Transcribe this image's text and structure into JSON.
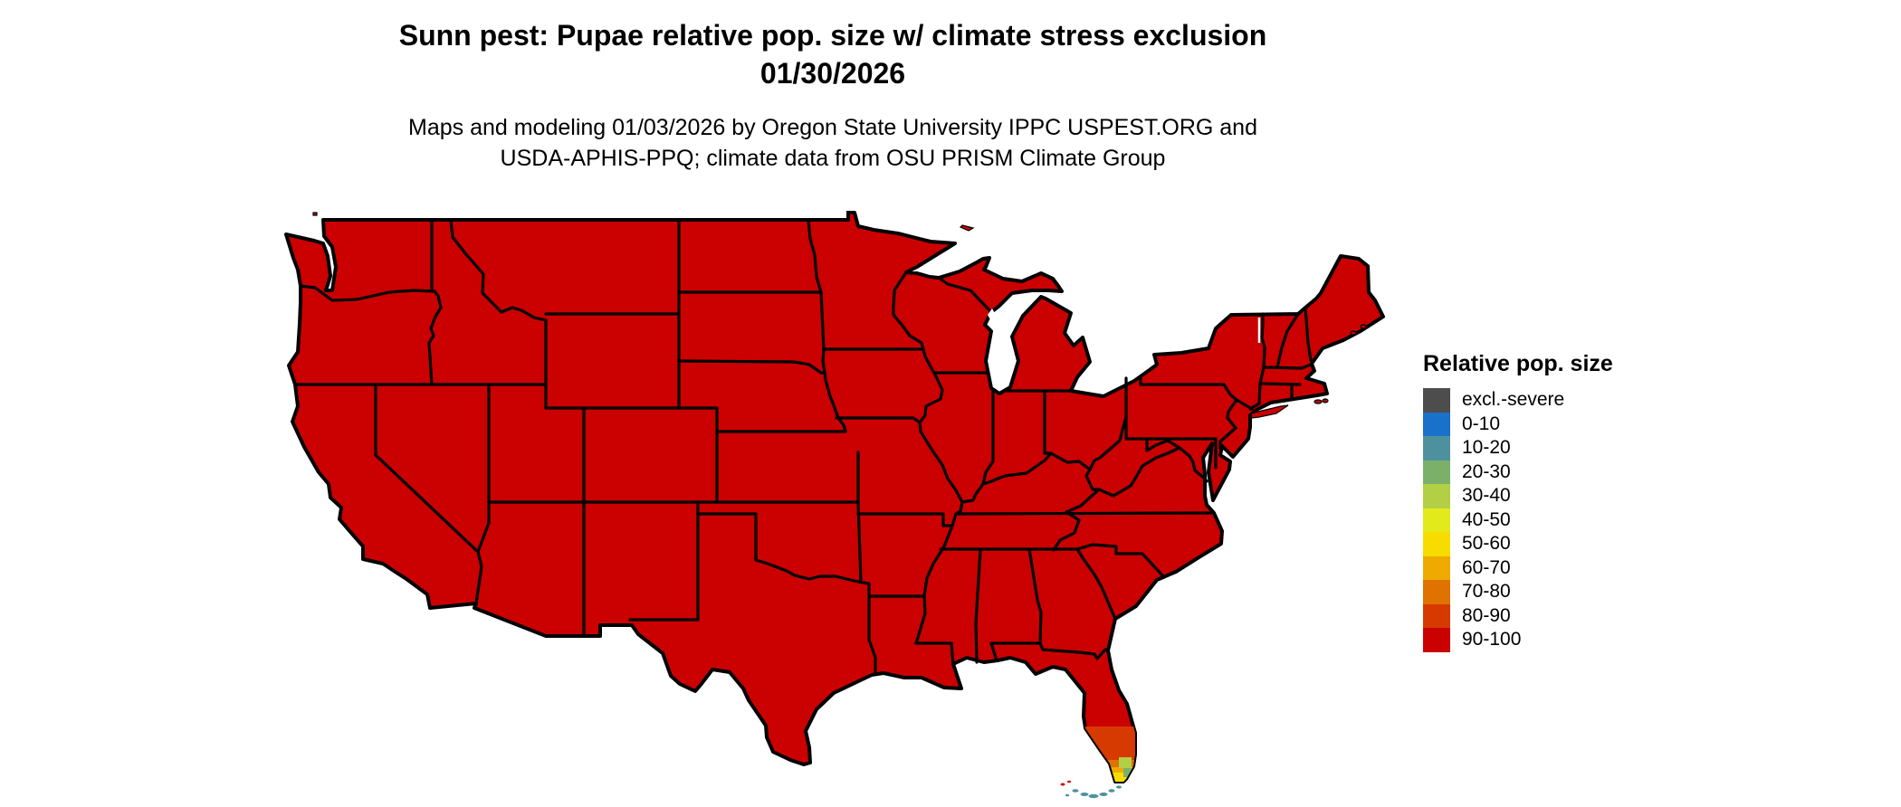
{
  "title": {
    "line1": "Sunn pest: Pupae relative pop. size w/ climate stress exclusion",
    "line2": "01/30/2026"
  },
  "subtitle": {
    "line1": "Maps and modeling 01/03/2026 by Oregon State University IPPC USPEST.ORG and",
    "line2": "USDA-APHIS-PPQ; climate data from OSU PRISM Climate Group"
  },
  "legend": {
    "title": "Relative pop. size",
    "items": [
      {
        "label": "excl.-severe",
        "color": "#4d4d4d"
      },
      {
        "label": "0-10",
        "color": "#1a71c9"
      },
      {
        "label": "10-20",
        "color": "#4e919e"
      },
      {
        "label": "20-30",
        "color": "#7bb06a"
      },
      {
        "label": "30-40",
        "color": "#b2cf45"
      },
      {
        "label": "40-50",
        "color": "#e3ea1c"
      },
      {
        "label": "50-60",
        "color": "#f8dc00"
      },
      {
        "label": "60-70",
        "color": "#efaa00"
      },
      {
        "label": "70-80",
        "color": "#e07200"
      },
      {
        "label": "80-90",
        "color": "#d63a00"
      },
      {
        "label": "90-100",
        "color": "#cb0000"
      }
    ]
  },
  "map": {
    "area": "Contiguous United States with state borders",
    "dominant_class": "90-100",
    "regions": [
      {
        "area": "All conterminous states",
        "class": "90-100"
      },
      {
        "area": "South Florida (inland of Lake Okeechobee southward)",
        "class": "80-90 grading to 70-80 and 60-70"
      },
      {
        "area": "Southern tip of Florida peninsula",
        "class": "50-60 with 30-40 and 20-30 patches on east side"
      },
      {
        "area": "Florida Keys",
        "class": "10-20"
      }
    ]
  }
}
